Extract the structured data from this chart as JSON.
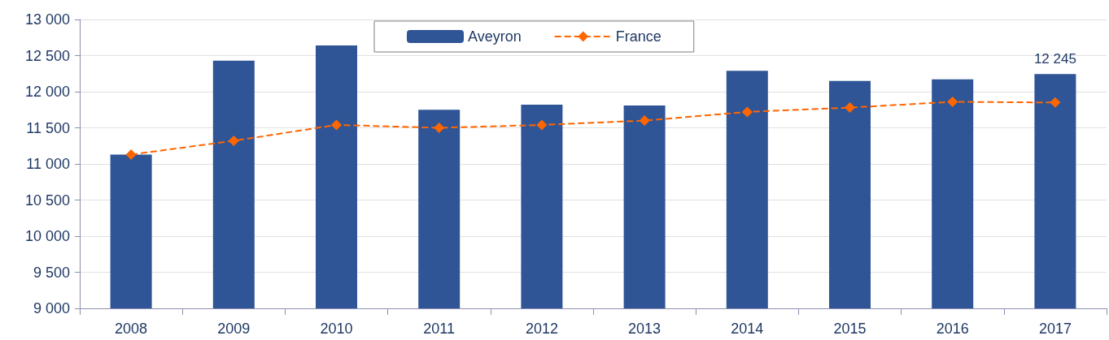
{
  "chart_data": {
    "type": "bar",
    "categories": [
      "2008",
      "2009",
      "2010",
      "2011",
      "2012",
      "2013",
      "2014",
      "2015",
      "2016",
      "2017"
    ],
    "series": [
      {
        "name": "Aveyron",
        "color": "#2f5597",
        "values": [
          11130,
          12430,
          12640,
          11750,
          11820,
          11810,
          12290,
          12150,
          12170,
          12245
        ],
        "value_labels": [
          null,
          null,
          null,
          null,
          null,
          null,
          null,
          null,
          null,
          "12 245"
        ]
      },
      {
        "name": "France",
        "type": "line",
        "color": "#ff6600",
        "marker": "diamond",
        "line_style": "dashed",
        "values": [
          11130,
          11320,
          11540,
          11500,
          11540,
          11600,
          11720,
          11780,
          11860,
          11850
        ]
      }
    ],
    "ylim": [
      9000,
      13000
    ],
    "yticks": [
      {
        "value": 9000,
        "label": "9 000"
      },
      {
        "value": 9500,
        "label": "9 500"
      },
      {
        "value": 10000,
        "label": "10 000"
      },
      {
        "value": 10500,
        "label": "10 500"
      },
      {
        "value": 11000,
        "label": "11 000"
      },
      {
        "value": 11500,
        "label": "11 500"
      },
      {
        "value": 12000,
        "label": "12 000"
      },
      {
        "value": 12500,
        "label": "12 500"
      },
      {
        "value": 13000,
        "label": "13 000"
      }
    ],
    "grid": "y",
    "legend": "top"
  }
}
